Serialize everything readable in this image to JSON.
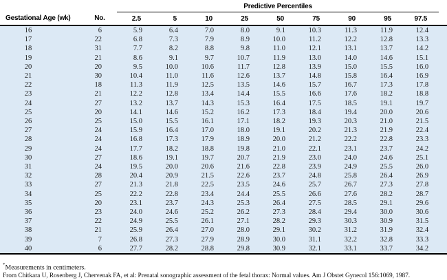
{
  "table": {
    "group_header": "Predictive Percentiles",
    "columns": [
      "Gestational Age (wk)",
      "No.",
      "2.5",
      "5",
      "10",
      "25",
      "50",
      "75",
      "90",
      "95",
      "97.5"
    ],
    "rows": [
      [
        "16",
        "6",
        "5.9",
        "6.4",
        "7.0",
        "8.0",
        "9.1",
        "10.3",
        "11.3",
        "11.9",
        "12.4"
      ],
      [
        "17",
        "22",
        "6.8",
        "7.3",
        "7.9",
        "8.9",
        "10.0",
        "11.2",
        "12.2",
        "12.8",
        "13.3"
      ],
      [
        "18",
        "31",
        "7.7",
        "8.2",
        "8.8",
        "9.8",
        "11.0",
        "12.1",
        "13.1",
        "13.7",
        "14.2"
      ],
      [
        "19",
        "21",
        "8.6",
        "9.1",
        "9.7",
        "10.7",
        "11.9",
        "13.0",
        "14.0",
        "14.6",
        "15.1"
      ],
      [
        "20",
        "20",
        "9.5",
        "10.0",
        "10.6",
        "11.7",
        "12.8",
        "13.9",
        "15.0",
        "15.5",
        "16.0"
      ],
      [
        "21",
        "30",
        "10.4",
        "11.0",
        "11.6",
        "12.6",
        "13.7",
        "14.8",
        "15.8",
        "16.4",
        "16.9"
      ],
      [
        "22",
        "18",
        "11.3",
        "11.9",
        "12.5",
        "13.5",
        "14.6",
        "15.7",
        "16.7",
        "17.3",
        "17.8"
      ],
      [
        "23",
        "21",
        "12.2",
        "12.8",
        "13.4",
        "14.4",
        "15.5",
        "16.6",
        "17.6",
        "18.2",
        "18.8"
      ],
      [
        "24",
        "27",
        "13.2",
        "13.7",
        "14.3",
        "15.3",
        "16.4",
        "17.5",
        "18.5",
        "19.1",
        "19.7"
      ],
      [
        "25",
        "20",
        "14.1",
        "14.6",
        "15.2",
        "16.2",
        "17.3",
        "18.4",
        "19.4",
        "20.0",
        "20.6"
      ],
      [
        "26",
        "25",
        "15.0",
        "15.5",
        "16.1",
        "17.1",
        "18.2",
        "19.3",
        "20.3",
        "21.0",
        "21.5"
      ],
      [
        "27",
        "24",
        "15.9",
        "16.4",
        "17.0",
        "18.0",
        "19.1",
        "20.2",
        "21.3",
        "21.9",
        "22.4"
      ],
      [
        "28",
        "24",
        "16.8",
        "17.3",
        "17.9",
        "18.9",
        "20.0",
        "21.2",
        "22.2",
        "22.8",
        "23.3"
      ],
      [
        "29",
        "24",
        "17.7",
        "18.2",
        "18.8",
        "19.8",
        "21.0",
        "22.1",
        "23.1",
        "23.7",
        "24.2"
      ],
      [
        "30",
        "27",
        "18.6",
        "19.1",
        "19.7",
        "20.7",
        "21.9",
        "23.0",
        "24.0",
        "24.6",
        "25.1"
      ],
      [
        "31",
        "24",
        "19.5",
        "20.0",
        "20.6",
        "21.6",
        "22.8",
        "23.9",
        "24.9",
        "25.5",
        "26.0"
      ],
      [
        "32",
        "28",
        "20.4",
        "20.9",
        "21.5",
        "22.6",
        "23.7",
        "24.8",
        "25.8",
        "26.4",
        "26.9"
      ],
      [
        "33",
        "27",
        "21.3",
        "21.8",
        "22.5",
        "23.5",
        "24.6",
        "25.7",
        "26.7",
        "27.3",
        "27.8"
      ],
      [
        "34",
        "25",
        "22.2",
        "22.8",
        "23.4",
        "24.4",
        "25.5",
        "26.6",
        "27.6",
        "28.2",
        "28.7"
      ],
      [
        "35",
        "20",
        "23.1",
        "23.7",
        "24.3",
        "25.3",
        "26.4",
        "27.5",
        "28.5",
        "29.1",
        "29.6"
      ],
      [
        "36",
        "23",
        "24.0",
        "24.6",
        "25.2",
        "26.2",
        "27.3",
        "28.4",
        "29.4",
        "30.0",
        "30.6"
      ],
      [
        "37",
        "22",
        "24.9",
        "25.5",
        "26.1",
        "27.1",
        "28.2",
        "29.3",
        "30.3",
        "30.9",
        "31.5"
      ],
      [
        "38",
        "21",
        "25.9",
        "26.4",
        "27.0",
        "28.0",
        "29.1",
        "30.2",
        "31.2",
        "31.9",
        "32.4"
      ],
      [
        "39",
        "7",
        "26.8",
        "27.3",
        "27.9",
        "28.9",
        "30.0",
        "31.1",
        "32.2",
        "32.8",
        "33.3"
      ],
      [
        "40",
        "6",
        "27.7",
        "28.2",
        "28.8",
        "29.8",
        "30.9",
        "32.1",
        "33.1",
        "33.7",
        "34.2"
      ]
    ]
  },
  "footnotes": {
    "asterisk": "*",
    "note1": "Measurements in centimeters.",
    "note2": "From Chitkara U, Rosenberg J, Chervenak FA, et al: Prenatal sonographic assessment of the fetal thorax: Normal values. Am J Obstet Gynecol 156:1069, 1987."
  },
  "colors": {
    "row_background": "#dce9f5",
    "rule": "#000000",
    "text": "#1d1d1d"
  }
}
